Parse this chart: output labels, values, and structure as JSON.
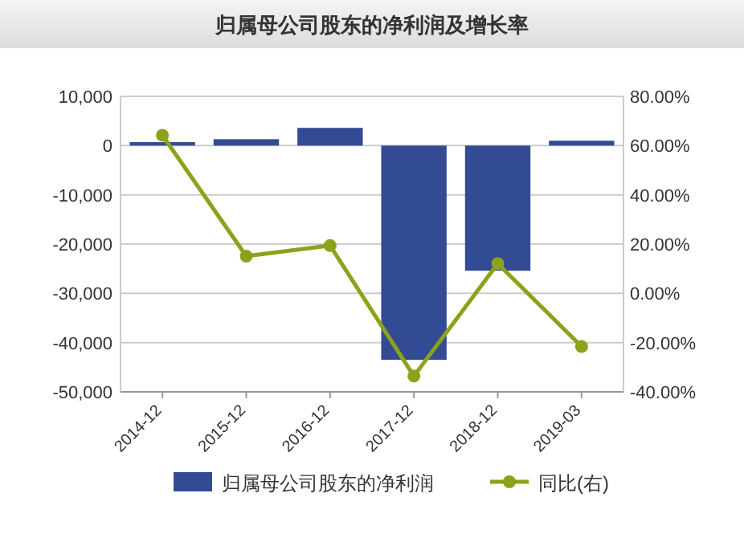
{
  "chart_data": {
    "type": "bar",
    "title": "归属母公司股东的净利润及增长率",
    "categories": [
      "2014-12",
      "2015-12",
      "2016-12",
      "2017-12",
      "2018-12",
      "2019-03"
    ],
    "series": [
      {
        "name": "归属母公司股东的净利润",
        "color": "#334a94",
        "values": [
          700,
          1300,
          3600,
          -43500,
          -25400,
          1000
        ]
      },
      {
        "name": "同比(右)",
        "type": "line",
        "axis": "y2",
        "color": "#8ca21a",
        "values": [
          64.2,
          15.1,
          19.4,
          -33.6,
          12.1,
          -21.6
        ]
      }
    ],
    "ylim": [
      -50000,
      10000
    ],
    "yticks": [
      {
        "value": -50000,
        "label": "-50,000"
      },
      {
        "value": -40000,
        "label": "-40,000"
      },
      {
        "value": -30000,
        "label": "-30,000"
      },
      {
        "value": -20000,
        "label": "-20,000"
      },
      {
        "value": -10000,
        "label": "-10,000"
      },
      0,
      {
        "value": 10000,
        "label": "10,000"
      }
    ],
    "y2lim": [
      -40,
      80
    ],
    "y2ticks": [
      {
        "value": -40,
        "label": "-40.00%"
      },
      {
        "value": -20,
        "label": "-20.00%"
      },
      {
        "value": 0,
        "label": "0.00%"
      },
      {
        "value": 20,
        "label": "20.00%"
      },
      {
        "value": 40,
        "label": "40.00%"
      },
      {
        "value": 60,
        "label": "60.00%"
      },
      {
        "value": 80,
        "label": "80.00%"
      }
    ],
    "grid": "y",
    "legend": "bottom",
    "marker": "circle"
  }
}
